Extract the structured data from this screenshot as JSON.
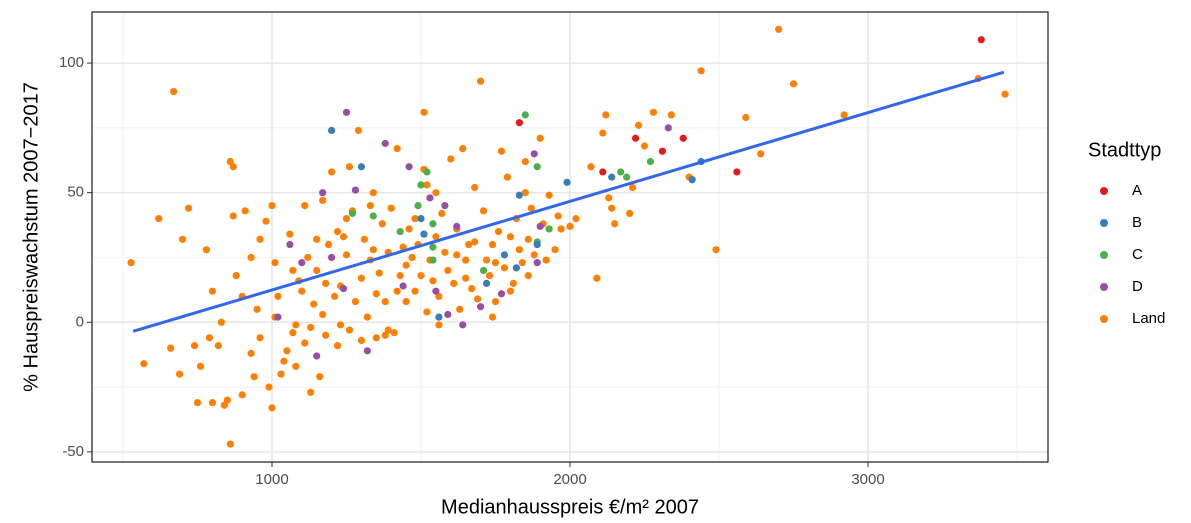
{
  "chart_data": {
    "type": "scatter",
    "x_label": "Medianhausspreis €/m² 2007",
    "y_label": "% Hauspreiswachstum 2007−2017",
    "legend_title": "Stadttyp",
    "legend_position": "right",
    "grid": true,
    "xlim": [
      396,
      3604
    ],
    "ylim": [
      -53.9,
      119.7
    ],
    "xticks": [
      1000,
      2000,
      3000
    ],
    "yticks": [
      -50,
      0,
      50,
      100
    ],
    "x_minor_grid": [
      500,
      1500,
      2500,
      3500
    ],
    "y_minor_grid": [
      -25,
      25,
      75
    ],
    "trend_line": {
      "color": "#3366ee",
      "x": [
        534,
        3456
      ],
      "y": [
        -3.5,
        96.5
      ]
    },
    "series": [
      {
        "name": "A",
        "color": "#e41a1c",
        "x": [
          1830,
          2110,
          2220,
          2310,
          2380,
          2560,
          3380
        ],
        "y": [
          77,
          58,
          71,
          66,
          71,
          58,
          109
        ]
      },
      {
        "name": "B",
        "color": "#377eb8",
        "x": [
          1200,
          1300,
          1500,
          1560,
          1720,
          1780,
          1820,
          1830,
          1990,
          2140,
          2410,
          2440,
          1890,
          1510
        ],
        "y": [
          74,
          60,
          40,
          2,
          15,
          26,
          21,
          49,
          54,
          56,
          55,
          62,
          30,
          34
        ]
      },
      {
        "name": "C",
        "color": "#4daf4a",
        "x": [
          1270,
          1340,
          1430,
          1500,
          1520,
          1540,
          1540,
          1710,
          1850,
          1890,
          1890,
          1930,
          2170,
          2190,
          2270,
          1490,
          1540
        ],
        "y": [
          42,
          41,
          35,
          53,
          58,
          38,
          24,
          20,
          80,
          60,
          31,
          36,
          58,
          56,
          62,
          45,
          29
        ]
      },
      {
        "name": "D",
        "color": "#984ea3",
        "x": [
          1250,
          1170,
          1280,
          1380,
          1460,
          1530,
          1580,
          1620,
          1700,
          1770,
          1900,
          1880,
          2330,
          1020,
          1150,
          1320,
          1100,
          1440,
          1550,
          1590,
          1640,
          1890,
          1200,
          1240,
          1060
        ],
        "y": [
          81,
          50,
          51,
          69,
          60,
          48,
          45,
          37,
          6,
          11,
          37,
          65,
          75,
          2,
          -13,
          -11,
          23,
          14,
          12,
          3,
          -1,
          23,
          25,
          13,
          30
        ]
      },
      {
        "name": "Land",
        "color": "#ff7f00",
        "x": [
          527,
          570,
          620,
          660,
          670,
          690,
          720,
          700,
          740,
          750,
          760,
          780,
          790,
          800,
          800,
          820,
          830,
          840,
          850,
          860,
          860,
          870,
          880,
          870,
          900,
          910,
          930,
          940,
          960,
          960,
          980,
          990,
          1000,
          1000,
          1010,
          1020,
          1040,
          1050,
          1060,
          1070,
          1080,
          1090,
          1100,
          1110,
          1120,
          1130,
          1140,
          1150,
          1160,
          1170,
          1180,
          1190,
          1200,
          1210,
          1220,
          1230,
          1240,
          1250,
          1260,
          1270,
          1280,
          1290,
          1300,
          1310,
          1320,
          1330,
          1340,
          1350,
          1360,
          1370,
          1380,
          1390,
          1400,
          1410,
          1420,
          1430,
          1440,
          1450,
          1460,
          1470,
          1480,
          1490,
          1500,
          1510,
          1510,
          1520,
          1530,
          1540,
          1550,
          1560,
          1570,
          1580,
          1590,
          1600,
          1610,
          1620,
          1630,
          1640,
          1650,
          1660,
          1670,
          1680,
          1690,
          1700,
          1710,
          1720,
          1730,
          1740,
          1750,
          1760,
          1770,
          1780,
          1790,
          1800,
          1810,
          1820,
          1830,
          1840,
          1850,
          1860,
          1870,
          1880,
          1900,
          1910,
          1920,
          1930,
          1950,
          1960,
          1970,
          2000,
          2020,
          2070,
          2090,
          2110,
          2120,
          2130,
          2140,
          2150,
          2200,
          2210,
          2230,
          2250,
          2280,
          2340,
          2400,
          2440,
          2490,
          2590,
          2640,
          2700,
          2750,
          2920,
          3370,
          3460,
          950,
          1030,
          1070,
          1110,
          1130,
          1180,
          1220,
          1260,
          1300,
          1340,
          1380,
          1420,
          1480,
          1520,
          1560,
          1620,
          1680,
          1740,
          1800,
          1860,
          1350,
          1390,
          1330,
          1230,
          1170,
          1080,
          1010,
          900,
          930,
          1150,
          1250,
          1450,
          1550,
          1650,
          1750,
          1850
        ],
        "y": [
          23,
          -16,
          40,
          -10,
          89,
          -20,
          44,
          32,
          -9,
          -31,
          -17,
          28,
          -6,
          -31,
          12,
          -9,
          0,
          -32,
          -30,
          -47,
          62,
          60,
          18,
          41,
          -28,
          43,
          25,
          -21,
          -6,
          32,
          39,
          -25,
          -33,
          45,
          23,
          10,
          -15,
          -11,
          34,
          -4,
          -17,
          16,
          12,
          -8,
          25,
          -27,
          7,
          20,
          -21,
          47,
          -5,
          30,
          58,
          10,
          -9,
          14,
          33,
          26,
          -3,
          43,
          8,
          74,
          17,
          32,
          2,
          24,
          50,
          -6,
          19,
          38,
          8,
          27,
          44,
          -4,
          67,
          18,
          29,
          8,
          36,
          25,
          12,
          30,
          18,
          59,
          81,
          4,
          24,
          16,
          33,
          10,
          42,
          27,
          20,
          63,
          15,
          36,
          5,
          67,
          24,
          30,
          13,
          52,
          9,
          93,
          43,
          24,
          18,
          30,
          8,
          35,
          66,
          21,
          56,
          33,
          15,
          40,
          28,
          23,
          50,
          18,
          44,
          26,
          71,
          38,
          24,
          49,
          28,
          41,
          36,
          37,
          40,
          60,
          17,
          73,
          80,
          48,
          44,
          38,
          42,
          52,
          76,
          68,
          81,
          80,
          56,
          97,
          28,
          79,
          65,
          113,
          92,
          80,
          94,
          88,
          5,
          -20,
          20,
          45,
          -2,
          15,
          35,
          60,
          -7,
          28,
          -5,
          12,
          40,
          53,
          -1,
          26,
          31,
          2,
          12,
          32,
          11,
          -3,
          45,
          -1,
          3,
          -1,
          2,
          10,
          -12,
          32,
          40,
          22,
          50,
          17,
          23,
          62
        ]
      }
    ]
  }
}
